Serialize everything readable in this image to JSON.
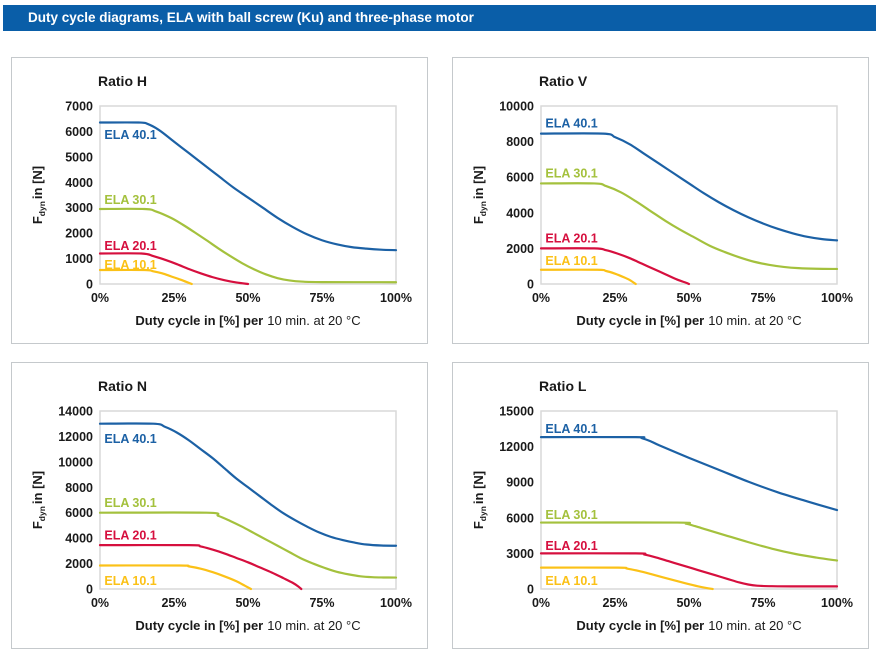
{
  "header": {
    "title": "Duty cycle diagrams, ELA with ball screw (Ku) and three-phase motor",
    "bg": "#0a5ea8"
  },
  "colors": {
    "blue": "#1c61a5",
    "green": "#a4c13d",
    "red": "#d60f3e",
    "yellow": "#fbc117",
    "text": "#1a1a1a",
    "plot_border": "#d9d9d9",
    "card_border": "#c5c9cc"
  },
  "xlabel_bold": "Duty cycle in [%] per",
  "xlabel_regular": "10 min. at 20 °C",
  "ylabel_main": "F",
  "ylabel_sub": "dyn",
  "ylabel_rest": "in [N]",
  "xticks": [
    "0%",
    "25%",
    "50%",
    "75%",
    "100%"
  ],
  "chart_data": [
    {
      "type": "line",
      "title": "Ratio H",
      "xlabel": "Duty cycle in [%] per 10 min. at 20 °C",
      "ylabel": "Fdyn in [N]",
      "ylim": [
        0,
        7000
      ],
      "yticks": [
        0,
        1000,
        2000,
        3000,
        4000,
        5000,
        6000,
        7000
      ],
      "x_unit": "percent duty cycle",
      "series": [
        {
          "name": "ELA 40.1",
          "color": "blue",
          "label_x": 1.5,
          "label_y": 5700,
          "points": [
            [
              0,
              6350
            ],
            [
              13,
              6350
            ],
            [
              16,
              6300
            ],
            [
              20,
              6050
            ],
            [
              25,
              5600
            ],
            [
              30,
              5150
            ],
            [
              35,
              4700
            ],
            [
              40,
              4250
            ],
            [
              45,
              3800
            ],
            [
              50,
              3400
            ],
            [
              55,
              3000
            ],
            [
              60,
              2600
            ],
            [
              65,
              2250
            ],
            [
              70,
              1950
            ],
            [
              75,
              1720
            ],
            [
              80,
              1560
            ],
            [
              85,
              1450
            ],
            [
              90,
              1390
            ],
            [
              95,
              1350
            ],
            [
              100,
              1330
            ]
          ]
        },
        {
          "name": "ELA 30.1",
          "color": "green",
          "label_x": 1.5,
          "label_y": 3150,
          "points": [
            [
              0,
              2950
            ],
            [
              15,
              2950
            ],
            [
              19,
              2850
            ],
            [
              24,
              2600
            ],
            [
              28,
              2330
            ],
            [
              32,
              2030
            ],
            [
              36,
              1720
            ],
            [
              40,
              1400
            ],
            [
              44,
              1100
            ],
            [
              48,
              820
            ],
            [
              52,
              580
            ],
            [
              56,
              380
            ],
            [
              60,
              230
            ],
            [
              64,
              140
            ],
            [
              68,
              95
            ],
            [
              75,
              75
            ],
            [
              100,
              70
            ]
          ]
        },
        {
          "name": "ELA 20.1",
          "color": "red",
          "label_x": 1.5,
          "label_y": 1340,
          "points": [
            [
              0,
              1200
            ],
            [
              14,
              1200
            ],
            [
              18,
              1100
            ],
            [
              22,
              950
            ],
            [
              26,
              780
            ],
            [
              30,
              590
            ],
            [
              34,
              420
            ],
            [
              38,
              270
            ],
            [
              42,
              150
            ],
            [
              46,
              60
            ],
            [
              50,
              0
            ]
          ]
        },
        {
          "name": "ELA 10.1",
          "color": "yellow",
          "label_x": 1.5,
          "label_y": 590,
          "points": [
            [
              0,
              550
            ],
            [
              15,
              550
            ],
            [
              18,
              500
            ],
            [
              21,
              420
            ],
            [
              24,
              300
            ],
            [
              27,
              180
            ],
            [
              29,
              90
            ],
            [
              31,
              0
            ]
          ]
        }
      ]
    },
    {
      "type": "line",
      "title": "Ratio V",
      "xlabel": "Duty cycle in [%] per 10 min. at 20 °C",
      "ylabel": "Fdyn in [N]",
      "ylim": [
        0,
        10000
      ],
      "yticks": [
        0,
        2000,
        4000,
        6000,
        8000,
        10000
      ],
      "x_unit": "percent duty cycle",
      "series": [
        {
          "name": "ELA 40.1",
          "color": "blue",
          "label_x": 1.5,
          "label_y": 8800,
          "points": [
            [
              0,
              8450
            ],
            [
              21,
              8450
            ],
            [
              25,
              8250
            ],
            [
              30,
              7850
            ],
            [
              35,
              7300
            ],
            [
              40,
              6750
            ],
            [
              45,
              6200
            ],
            [
              50,
              5650
            ],
            [
              55,
              5100
            ],
            [
              60,
              4600
            ],
            [
              65,
              4150
            ],
            [
              70,
              3750
            ],
            [
              75,
              3400
            ],
            [
              80,
              3100
            ],
            [
              85,
              2850
            ],
            [
              90,
              2650
            ],
            [
              95,
              2520
            ],
            [
              100,
              2450
            ]
          ]
        },
        {
          "name": "ELA 30.1",
          "color": "green",
          "label_x": 1.5,
          "label_y": 5980,
          "points": [
            [
              0,
              5650
            ],
            [
              18,
              5650
            ],
            [
              22,
              5500
            ],
            [
              27,
              5150
            ],
            [
              32,
              4650
            ],
            [
              37,
              4100
            ],
            [
              42,
              3550
            ],
            [
              47,
              3050
            ],
            [
              52,
              2600
            ],
            [
              57,
              2150
            ],
            [
              62,
              1800
            ],
            [
              67,
              1500
            ],
            [
              72,
              1250
            ],
            [
              77,
              1080
            ],
            [
              82,
              960
            ],
            [
              87,
              890
            ],
            [
              93,
              855
            ],
            [
              100,
              845
            ]
          ]
        },
        {
          "name": "ELA 20.1",
          "color": "red",
          "label_x": 1.5,
          "label_y": 2320,
          "points": [
            [
              0,
              2000
            ],
            [
              18,
              2000
            ],
            [
              22,
              1900
            ],
            [
              26,
              1700
            ],
            [
              30,
              1450
            ],
            [
              34,
              1150
            ],
            [
              38,
              850
            ],
            [
              42,
              550
            ],
            [
              46,
              250
            ],
            [
              49,
              70
            ],
            [
              50,
              0
            ]
          ]
        },
        {
          "name": "ELA 10.1",
          "color": "yellow",
          "label_x": 1.5,
          "label_y": 1060,
          "points": [
            [
              0,
              800
            ],
            [
              19,
              800
            ],
            [
              22,
              730
            ],
            [
              25,
              580
            ],
            [
              28,
              380
            ],
            [
              30,
              220
            ],
            [
              32,
              0
            ]
          ]
        }
      ]
    },
    {
      "type": "line",
      "title": "Ratio N",
      "xlabel": "Duty cycle in [%] per 10 min. at 20 °C",
      "ylabel": "Fdyn in [N]",
      "ylim": [
        0,
        14000
      ],
      "yticks": [
        0,
        2000,
        4000,
        6000,
        8000,
        10000,
        12000,
        14000
      ],
      "x_unit": "percent duty cycle",
      "series": [
        {
          "name": "ELA 40.1",
          "color": "blue",
          "label_x": 1.5,
          "label_y": 11500,
          "points": [
            [
              0,
              13000
            ],
            [
              18,
              13000
            ],
            [
              22,
              12750
            ],
            [
              26,
              12300
            ],
            [
              30,
              11700
            ],
            [
              34,
              11000
            ],
            [
              38,
              10300
            ],
            [
              42,
              9500
            ],
            [
              46,
              8700
            ],
            [
              50,
              8000
            ],
            [
              54,
              7300
            ],
            [
              58,
              6600
            ],
            [
              62,
              5950
            ],
            [
              66,
              5400
            ],
            [
              70,
              4900
            ],
            [
              74,
              4450
            ],
            [
              78,
              4100
            ],
            [
              82,
              3850
            ],
            [
              86,
              3650
            ],
            [
              90,
              3500
            ],
            [
              95,
              3420
            ],
            [
              100,
              3400
            ]
          ]
        },
        {
          "name": "ELA 30.1",
          "color": "green",
          "label_x": 1.5,
          "label_y": 6450,
          "points": [
            [
              0,
              6000
            ],
            [
              36,
              6000
            ],
            [
              40,
              5750
            ],
            [
              44,
              5350
            ],
            [
              48,
              4900
            ],
            [
              52,
              4400
            ],
            [
              56,
              3900
            ],
            [
              60,
              3400
            ],
            [
              64,
              2900
            ],
            [
              68,
              2400
            ],
            [
              72,
              2000
            ],
            [
              76,
              1650
            ],
            [
              80,
              1350
            ],
            [
              84,
              1150
            ],
            [
              88,
              1000
            ],
            [
              92,
              930
            ],
            [
              96,
              905
            ],
            [
              100,
              900
            ]
          ]
        },
        {
          "name": "ELA 20.1",
          "color": "red",
          "label_x": 1.5,
          "label_y": 3900,
          "points": [
            [
              0,
              3450
            ],
            [
              30,
              3450
            ],
            [
              34,
              3350
            ],
            [
              38,
              3100
            ],
            [
              42,
              2800
            ],
            [
              46,
              2450
            ],
            [
              50,
              2100
            ],
            [
              54,
              1700
            ],
            [
              58,
              1300
            ],
            [
              62,
              850
            ],
            [
              65,
              500
            ],
            [
              67,
              200
            ],
            [
              68,
              0
            ]
          ]
        },
        {
          "name": "ELA 10.1",
          "color": "yellow",
          "label_x": 1.5,
          "label_y": 330,
          "points": [
            [
              0,
              1850
            ],
            [
              27,
              1850
            ],
            [
              30,
              1780
            ],
            [
              34,
              1600
            ],
            [
              38,
              1330
            ],
            [
              42,
              1000
            ],
            [
              46,
              620
            ],
            [
              49,
              250
            ],
            [
              51,
              0
            ]
          ]
        }
      ]
    },
    {
      "type": "line",
      "title": "Ratio L",
      "xlabel": "Duty cycle in [%] per 10 min. at 20 °C",
      "ylabel": "Fdyn in [N]",
      "ylim": [
        0,
        15000
      ],
      "yticks": [
        0,
        3000,
        6000,
        9000,
        12000,
        15000
      ],
      "x_unit": "percent duty cycle",
      "series": [
        {
          "name": "ELA 40.1",
          "color": "blue",
          "label_x": 1.5,
          "label_y": 13150,
          "points": [
            [
              0,
              12800
            ],
            [
              32,
              12800
            ],
            [
              34,
              12720
            ],
            [
              37,
              12450
            ],
            [
              40,
              12100
            ],
            [
              50,
              11050
            ],
            [
              60,
              10050
            ],
            [
              70,
              9050
            ],
            [
              80,
              8150
            ],
            [
              90,
              7380
            ],
            [
              100,
              6650
            ]
          ]
        },
        {
          "name": "ELA 30.1",
          "color": "green",
          "label_x": 1.5,
          "label_y": 5880,
          "points": [
            [
              0,
              5600
            ],
            [
              46,
              5600
            ],
            [
              49,
              5500
            ],
            [
              52,
              5300
            ],
            [
              56,
              5000
            ],
            [
              62,
              4550
            ],
            [
              70,
              3950
            ],
            [
              78,
              3400
            ],
            [
              86,
              2950
            ],
            [
              93,
              2650
            ],
            [
              100,
              2400
            ]
          ]
        },
        {
          "name": "ELA 20.1",
          "color": "red",
          "label_x": 1.5,
          "label_y": 3280,
          "points": [
            [
              0,
              3000
            ],
            [
              32,
              3000
            ],
            [
              35,
              2900
            ],
            [
              39,
              2650
            ],
            [
              43,
              2350
            ],
            [
              47,
              2050
            ],
            [
              51,
              1750
            ],
            [
              55,
              1450
            ],
            [
              59,
              1150
            ],
            [
              63,
              850
            ],
            [
              67,
              550
            ],
            [
              70,
              380
            ],
            [
              73,
              280
            ],
            [
              78,
              235
            ],
            [
              85,
              222
            ],
            [
              100,
              220
            ]
          ]
        },
        {
          "name": "ELA 10.1",
          "color": "yellow",
          "label_x": 1.5,
          "label_y": 330,
          "points": [
            [
              0,
              1800
            ],
            [
              26,
              1800
            ],
            [
              29,
              1720
            ],
            [
              33,
              1520
            ],
            [
              37,
              1270
            ],
            [
              41,
              1000
            ],
            [
              45,
              730
            ],
            [
              49,
              470
            ],
            [
              53,
              230
            ],
            [
              56,
              80
            ],
            [
              58,
              0
            ]
          ]
        }
      ]
    }
  ]
}
